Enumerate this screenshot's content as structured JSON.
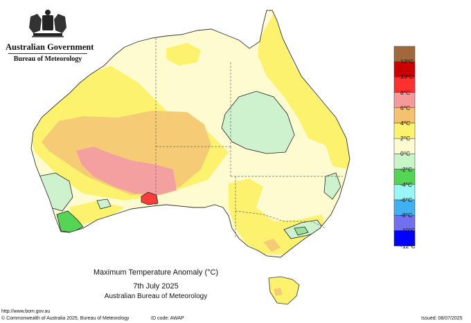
{
  "header": {
    "government": "Australian Government",
    "bureau": "Bureau of Meteorology"
  },
  "map": {
    "title": "Maximum Temperature Anomaly (°C)",
    "date": "7th July 2025",
    "credit": "Australian Bureau of Meteorology",
    "colors": {
      "band_0_2": "#fffbd0",
      "band_2_4": "#fcf26e",
      "band_4_6": "#f5cc75",
      "band_6_8": "#f4a0a0",
      "band_8_10": "#ff3c3c",
      "band_m2_0": "#cdf2cd",
      "band_m4_m2": "#9ae09a",
      "band_m6_m4": "#55d455"
    }
  },
  "legend": {
    "labels": [
      "12°C",
      "10°C",
      "8°C",
      "6°C",
      "4°C",
      "2°C",
      "0°C",
      "-2°C",
      "-4°C",
      "-6°C",
      "-8°C",
      "-10°C",
      "-12°C"
    ],
    "colors": [
      "#a0693c",
      "#cc0000",
      "#ff3030",
      "#f59a9a",
      "#f5c070",
      "#fcf26e",
      "#fffbd0",
      "#c8f5c8",
      "#55d455",
      "#9af5f5",
      "#40b0f0",
      "#7070f0",
      "#0000ff"
    ]
  },
  "footer": {
    "url": "http://www.bom.gov.au",
    "copyright": "© Commonwealth of Australia 2025, Bureau of Meteorology",
    "id_code": "ID code: AWAP",
    "issued": "Issued: 08/07/2025"
  }
}
